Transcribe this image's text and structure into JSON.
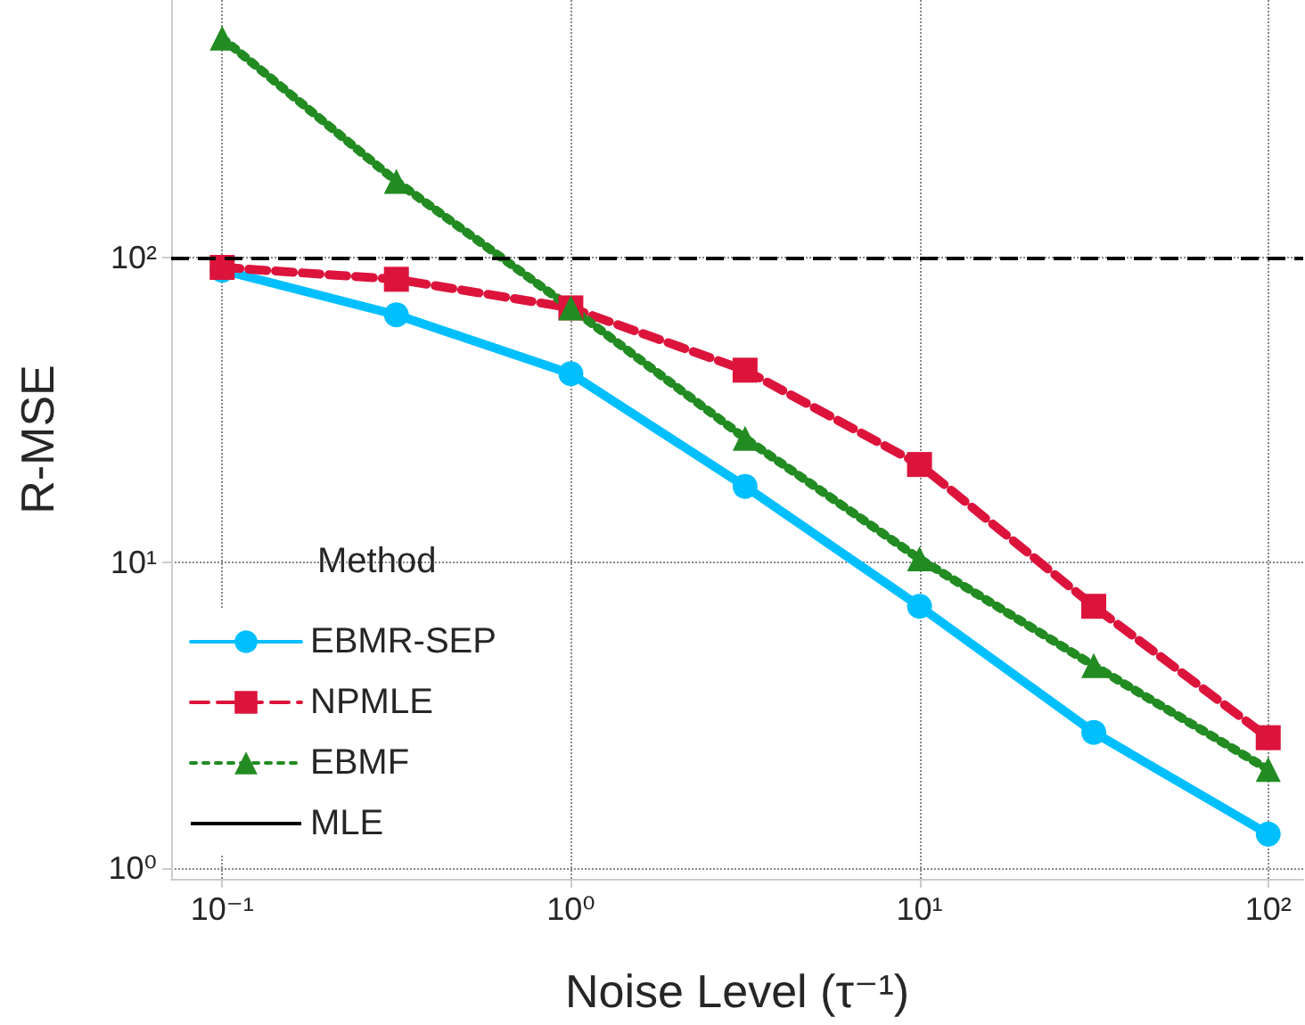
{
  "chart_data": {
    "type": "line",
    "xlabel": "Noise Level (τ⁻¹)",
    "ylabel": "R-MSE",
    "legend_title": "Method",
    "x": [
      0.1,
      0.316,
      1,
      3.16,
      10,
      31.6,
      100
    ],
    "series": [
      {
        "name": "EBMR-SEP",
        "color": "#00bfff",
        "marker": "circle",
        "line_style": "solid",
        "values": [
          91,
          65,
          41.7,
          17.8,
          7.2,
          2.78,
          1.29
        ]
      },
      {
        "name": "NPMLE",
        "color": "#dc143c",
        "marker": "square",
        "line_style": "dashed",
        "values": [
          93,
          85,
          68.5,
          42.8,
          21,
          7.2,
          2.67
        ]
      },
      {
        "name": "EBMF",
        "color": "#228b22",
        "marker": "triangle",
        "line_style": "dotted",
        "values": [
          525,
          178,
          68.5,
          25.6,
          10.3,
          4.6,
          2.1
        ]
      }
    ],
    "ref_lines": [
      {
        "axis": "y",
        "value": 100,
        "label": "MLE",
        "color": "#000000",
        "line_style": "dashed"
      }
    ],
    "log": "xy",
    "xlim": [
      0.0714,
      126
    ],
    "ylim": [
      0.92,
      700
    ],
    "xticks": [
      {
        "value": 0.1,
        "label": "10⁻¹"
      },
      {
        "value": 1,
        "label": "10⁰"
      },
      {
        "value": 10,
        "label": "10¹"
      },
      {
        "value": 100,
        "label": "10²"
      }
    ],
    "yticks": [
      {
        "value": 1,
        "label": "10⁰"
      },
      {
        "value": 10,
        "label": "10¹"
      },
      {
        "value": 100,
        "label": "10²"
      }
    ],
    "grid": true,
    "legend": "bottom left"
  }
}
